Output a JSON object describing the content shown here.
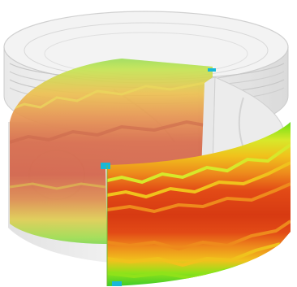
{
  "scene": {
    "subject": "cutaway-piston-skirt-contour",
    "background_color": "#ffffff",
    "ghost_body_color": "#cfcfcf",
    "contour_palette": [
      "#2ec82e",
      "#8fe21a",
      "#d7e82a",
      "#f0c21c",
      "#ee8a1c",
      "#e24a16",
      "#d73a12"
    ],
    "edge_marker_color": "#18b8d8"
  }
}
